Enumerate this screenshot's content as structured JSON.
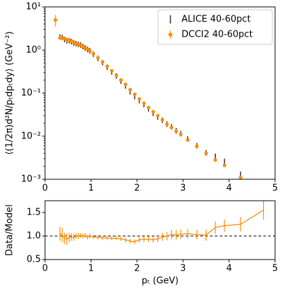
{
  "chart_data": [
    {
      "type": "scatter",
      "log_y": true,
      "ylabel": "⟨(1/2π)d²N/pₜdpₜdy⟩ (GeV⁻²)",
      "xlim": [
        0,
        5
      ],
      "xticks": [
        0,
        1,
        2,
        3,
        4,
        5
      ],
      "ylim": [
        0.001,
        10
      ],
      "yticks": [
        {
          "value": 0.001,
          "label": "10⁻³"
        },
        {
          "value": 0.01,
          "label": "10⁻²"
        },
        {
          "value": 0.1,
          "label": "10⁻¹"
        },
        {
          "value": 1,
          "label": "10⁰"
        },
        {
          "value": 10,
          "label": "10¹"
        }
      ],
      "legend": "upper right",
      "series": [
        {
          "name": "ALICE 40-60pct",
          "color": "#000000",
          "marker": "line",
          "x": [
            0.325,
            0.375,
            0.425,
            0.475,
            0.525,
            0.575,
            0.625,
            0.675,
            0.725,
            0.775,
            0.825,
            0.875,
            0.925,
            0.975,
            1.05,
            1.15,
            1.25,
            1.35,
            1.45,
            1.55,
            1.65,
            1.75,
            1.85,
            1.95,
            2.05,
            2.15,
            2.25,
            2.35,
            2.45,
            2.55,
            2.65,
            2.75,
            2.85,
            2.95,
            3.1,
            3.3,
            3.5,
            3.7,
            3.9,
            4.25
          ],
          "values": [
            2.0,
            1.95,
            1.76,
            1.63,
            1.65,
            1.57,
            1.46,
            1.4,
            1.35,
            1.31,
            1.2,
            1.11,
            1.03,
            0.95,
            0.8,
            0.64,
            0.51,
            0.4,
            0.31,
            0.25,
            0.19,
            0.147,
            0.107,
            0.083,
            0.067,
            0.054,
            0.043,
            0.034,
            0.028,
            0.0235,
            0.019,
            0.0165,
            0.0133,
            0.0114,
            0.0086,
            0.006,
            0.0041,
            0.0034,
            0.0026,
            0.0013
          ]
        },
        {
          "name": "DCCI2 40-60pct",
          "color": "#ff8c00",
          "marker": "circle",
          "x": [
            0.225,
            0.325,
            0.375,
            0.425,
            0.475,
            0.525,
            0.575,
            0.625,
            0.675,
            0.725,
            0.775,
            0.825,
            0.875,
            0.925,
            0.975,
            1.05,
            1.15,
            1.25,
            1.35,
            1.45,
            1.55,
            1.65,
            1.75,
            1.85,
            1.95,
            2.05,
            2.15,
            2.25,
            2.35,
            2.45,
            2.55,
            2.65,
            2.75,
            2.85,
            2.95,
            3.1,
            3.3,
            3.5,
            3.7,
            3.9,
            4.25
          ],
          "values": [
            5.0,
            1.9,
            1.9,
            1.85,
            1.75,
            1.7,
            1.6,
            1.5,
            1.4,
            1.35,
            1.3,
            1.2,
            1.1,
            1.05,
            0.95,
            0.82,
            0.66,
            0.53,
            0.42,
            0.33,
            0.26,
            0.2,
            0.16,
            0.12,
            0.094,
            0.073,
            0.058,
            0.046,
            0.037,
            0.03,
            0.024,
            0.019,
            0.016,
            0.013,
            0.011,
            0.0082,
            0.0058,
            0.004,
            0.0028,
            0.0021,
            0.0011
          ],
          "errors": [
            1.5,
            0.1,
            0.1,
            0.1,
            0.1,
            0.1,
            0.1,
            0.08,
            0.08,
            0.07,
            0.07,
            0.06,
            0.06,
            0.05,
            0.05,
            0.04,
            0.03,
            0.03,
            0.02,
            0.02,
            0.015,
            0.01,
            0.008,
            0.006,
            0.005,
            0.004,
            0.003,
            0.002,
            0.0015,
            0.0012,
            0.001,
            0.0008,
            0.0007,
            0.0006,
            0.0005,
            0.0004,
            0.0003,
            0.0002,
            0.00015,
            0.0001,
            0.0001
          ]
        }
      ]
    },
    {
      "type": "line",
      "ylabel": "Data/Model",
      "xlabel": "pₜ (GeV)",
      "xlim": [
        0,
        5
      ],
      "xticks": [
        0,
        1,
        2,
        3,
        4,
        5
      ],
      "ylim": [
        0.5,
        1.75
      ],
      "yticks": [
        0.5,
        {
          "value": 1,
          "label": "1.0"
        },
        1.5
      ],
      "hline": 1,
      "series": [
        {
          "color": "#ff8c00",
          "x": [
            0.325,
            0.375,
            0.425,
            0.475,
            0.525,
            0.575,
            0.625,
            0.675,
            0.725,
            0.775,
            0.825,
            0.875,
            0.925,
            0.975,
            1.05,
            1.15,
            1.25,
            1.35,
            1.45,
            1.55,
            1.65,
            1.75,
            1.85,
            1.95,
            2.05,
            2.15,
            2.25,
            2.35,
            2.45,
            2.55,
            2.65,
            2.75,
            2.85,
            2.95,
            3.1,
            3.3,
            3.5,
            3.7,
            3.9,
            4.25,
            4.75
          ],
          "values": [
            1.05,
            1.02,
            0.95,
            0.93,
            0.97,
            0.98,
            0.97,
            1.0,
            1.0,
            1.01,
            1.0,
            1.01,
            0.98,
            1.0,
            0.98,
            0.97,
            0.96,
            0.96,
            0.95,
            0.95,
            0.94,
            0.92,
            0.89,
            0.88,
            0.92,
            0.93,
            0.93,
            0.92,
            0.94,
            0.98,
            1.0,
            1.03,
            1.02,
            1.04,
            1.05,
            1.03,
            1.02,
            1.18,
            1.22,
            1.25,
            1.55
          ],
          "errors": [
            0.15,
            0.15,
            0.12,
            0.12,
            0.1,
            0.08,
            0.07,
            0.06,
            0.06,
            0.05,
            0.05,
            0.05,
            0.05,
            0.05,
            0.04,
            0.04,
            0.04,
            0.04,
            0.04,
            0.04,
            0.04,
            0.05,
            0.05,
            0.05,
            0.06,
            0.06,
            0.06,
            0.06,
            0.07,
            0.08,
            0.09,
            0.1,
            0.1,
            0.1,
            0.1,
            0.1,
            0.12,
            0.13,
            0.13,
            0.15,
            0.2
          ]
        }
      ]
    }
  ]
}
